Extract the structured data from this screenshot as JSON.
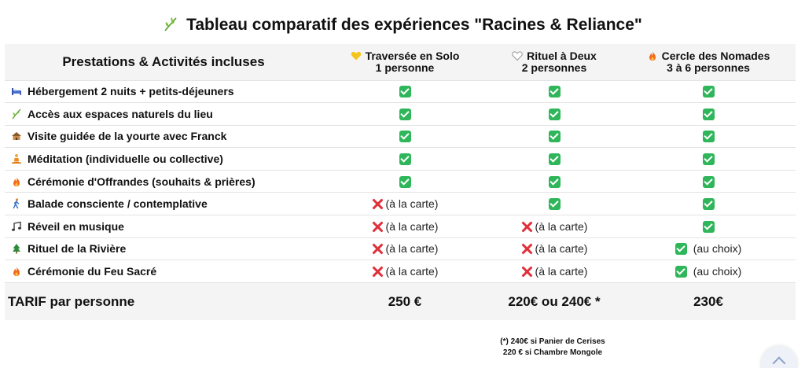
{
  "title": "Tableau comparatif des expériences \"Racines & Reliance\"",
  "header": {
    "label": "Prestations & Activités incluses",
    "columns": [
      {
        "name": "Traversée en Solo",
        "sub": "1 personne",
        "icon": "yellow-heart-icon"
      },
      {
        "name": "Rituel à Deux",
        "sub": "2 personnes",
        "icon": "white-heart-icon"
      },
      {
        "name": "Cercle des Nomades",
        "sub": "3 à 6 personnes",
        "icon": "fire-icon"
      }
    ]
  },
  "rows": [
    {
      "label": "Hébergement 2 nuits + petits-déjeuners",
      "icon": "bed-icon",
      "cells": [
        "",
        "",
        ""
      ]
    },
    {
      "label": "Accès aux espaces naturels du lieu",
      "icon": "herb-icon",
      "cells": [
        "",
        "",
        ""
      ]
    },
    {
      "label": "Visite guidée de la yourte avec Franck",
      "icon": "hut-icon",
      "cells": [
        "",
        "",
        ""
      ]
    },
    {
      "label": "Méditation (individuelle ou collective)",
      "icon": "meditation-icon",
      "cells": [
        "",
        "",
        ""
      ]
    },
    {
      "label": "Cérémonie d'Offrandes (souhaits & prières)",
      "icon": "fire-icon",
      "cells": [
        "",
        "",
        ""
      ]
    },
    {
      "label": "Balade consciente / contemplative",
      "icon": "walking-icon",
      "cells": [
        "(à la carte)",
        "",
        ""
      ]
    },
    {
      "label": "Réveil en musique",
      "icon": "music-icon",
      "cells": [
        "(à la carte)",
        "(à la carte)",
        ""
      ]
    },
    {
      "label": "Rituel de la Rivière",
      "icon": "tree-icon",
      "cells": [
        "(à la carte)",
        "(à la carte)",
        "(au choix)"
      ]
    },
    {
      "label": "Cérémonie du Feu Sacré",
      "icon": "fire-icon",
      "cells": [
        "(à la carte)",
        "(à la carte)",
        "(au choix)"
      ]
    }
  ],
  "marks": [
    [
      "yes",
      "yes",
      "yes"
    ],
    [
      "yes",
      "yes",
      "yes"
    ],
    [
      "yes",
      "yes",
      "yes"
    ],
    [
      "yes",
      "yes",
      "yes"
    ],
    [
      "yes",
      "yes",
      "yes"
    ],
    [
      "no",
      "yes",
      "yes"
    ],
    [
      "no",
      "no",
      "yes"
    ],
    [
      "no",
      "no",
      "yes"
    ],
    [
      "no",
      "no",
      "yes"
    ]
  ],
  "price": {
    "label": "TARIF par personne",
    "values": [
      "250 €",
      "220€ ou 240€ *",
      "230€"
    ]
  },
  "footnote": {
    "line1": "(*) 240€ si Panier de Cerises",
    "line2": "220 € si Chambre Mongole"
  },
  "colors": {
    "check": "#2fb65a",
    "cross": "#e0313b",
    "header_bg": "#f4f4f4"
  }
}
